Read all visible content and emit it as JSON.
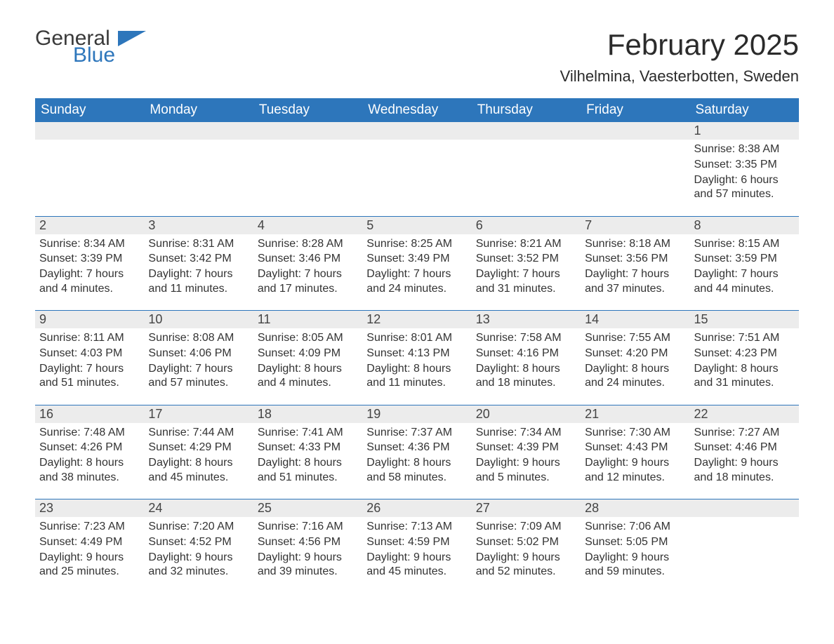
{
  "brand": {
    "word1": "General",
    "word2": "Blue",
    "accent_color": "#2d76bb"
  },
  "title": "February 2025",
  "location": "Vilhelmina, Vaesterbotten, Sweden",
  "colors": {
    "header_bg": "#2d76bb",
    "header_text": "#ffffff",
    "daynum_bg": "#ececec",
    "rule": "#2d76bb",
    "body_text": "#333333",
    "page_bg": "#ffffff"
  },
  "dow": [
    "Sunday",
    "Monday",
    "Tuesday",
    "Wednesday",
    "Thursday",
    "Friday",
    "Saturday"
  ],
  "labels": {
    "sunrise": "Sunrise",
    "sunset": "Sunset",
    "daylight": "Daylight"
  },
  "weeks": [
    [
      null,
      null,
      null,
      null,
      null,
      null,
      {
        "n": 1,
        "sunrise": "8:38 AM",
        "sunset": "3:35 PM",
        "daylight": "6 hours and 57 minutes."
      }
    ],
    [
      {
        "n": 2,
        "sunrise": "8:34 AM",
        "sunset": "3:39 PM",
        "daylight": "7 hours and 4 minutes."
      },
      {
        "n": 3,
        "sunrise": "8:31 AM",
        "sunset": "3:42 PM",
        "daylight": "7 hours and 11 minutes."
      },
      {
        "n": 4,
        "sunrise": "8:28 AM",
        "sunset": "3:46 PM",
        "daylight": "7 hours and 17 minutes."
      },
      {
        "n": 5,
        "sunrise": "8:25 AM",
        "sunset": "3:49 PM",
        "daylight": "7 hours and 24 minutes."
      },
      {
        "n": 6,
        "sunrise": "8:21 AM",
        "sunset": "3:52 PM",
        "daylight": "7 hours and 31 minutes."
      },
      {
        "n": 7,
        "sunrise": "8:18 AM",
        "sunset": "3:56 PM",
        "daylight": "7 hours and 37 minutes."
      },
      {
        "n": 8,
        "sunrise": "8:15 AM",
        "sunset": "3:59 PM",
        "daylight": "7 hours and 44 minutes."
      }
    ],
    [
      {
        "n": 9,
        "sunrise": "8:11 AM",
        "sunset": "4:03 PM",
        "daylight": "7 hours and 51 minutes."
      },
      {
        "n": 10,
        "sunrise": "8:08 AM",
        "sunset": "4:06 PM",
        "daylight": "7 hours and 57 minutes."
      },
      {
        "n": 11,
        "sunrise": "8:05 AM",
        "sunset": "4:09 PM",
        "daylight": "8 hours and 4 minutes."
      },
      {
        "n": 12,
        "sunrise": "8:01 AM",
        "sunset": "4:13 PM",
        "daylight": "8 hours and 11 minutes."
      },
      {
        "n": 13,
        "sunrise": "7:58 AM",
        "sunset": "4:16 PM",
        "daylight": "8 hours and 18 minutes."
      },
      {
        "n": 14,
        "sunrise": "7:55 AM",
        "sunset": "4:20 PM",
        "daylight": "8 hours and 24 minutes."
      },
      {
        "n": 15,
        "sunrise": "7:51 AM",
        "sunset": "4:23 PM",
        "daylight": "8 hours and 31 minutes."
      }
    ],
    [
      {
        "n": 16,
        "sunrise": "7:48 AM",
        "sunset": "4:26 PM",
        "daylight": "8 hours and 38 minutes."
      },
      {
        "n": 17,
        "sunrise": "7:44 AM",
        "sunset": "4:29 PM",
        "daylight": "8 hours and 45 minutes."
      },
      {
        "n": 18,
        "sunrise": "7:41 AM",
        "sunset": "4:33 PM",
        "daylight": "8 hours and 51 minutes."
      },
      {
        "n": 19,
        "sunrise": "7:37 AM",
        "sunset": "4:36 PM",
        "daylight": "8 hours and 58 minutes."
      },
      {
        "n": 20,
        "sunrise": "7:34 AM",
        "sunset": "4:39 PM",
        "daylight": "9 hours and 5 minutes."
      },
      {
        "n": 21,
        "sunrise": "7:30 AM",
        "sunset": "4:43 PM",
        "daylight": "9 hours and 12 minutes."
      },
      {
        "n": 22,
        "sunrise": "7:27 AM",
        "sunset": "4:46 PM",
        "daylight": "9 hours and 18 minutes."
      }
    ],
    [
      {
        "n": 23,
        "sunrise": "7:23 AM",
        "sunset": "4:49 PM",
        "daylight": "9 hours and 25 minutes."
      },
      {
        "n": 24,
        "sunrise": "7:20 AM",
        "sunset": "4:52 PM",
        "daylight": "9 hours and 32 minutes."
      },
      {
        "n": 25,
        "sunrise": "7:16 AM",
        "sunset": "4:56 PM",
        "daylight": "9 hours and 39 minutes."
      },
      {
        "n": 26,
        "sunrise": "7:13 AM",
        "sunset": "4:59 PM",
        "daylight": "9 hours and 45 minutes."
      },
      {
        "n": 27,
        "sunrise": "7:09 AM",
        "sunset": "5:02 PM",
        "daylight": "9 hours and 52 minutes."
      },
      {
        "n": 28,
        "sunrise": "7:06 AM",
        "sunset": "5:05 PM",
        "daylight": "9 hours and 59 minutes."
      },
      null
    ]
  ]
}
